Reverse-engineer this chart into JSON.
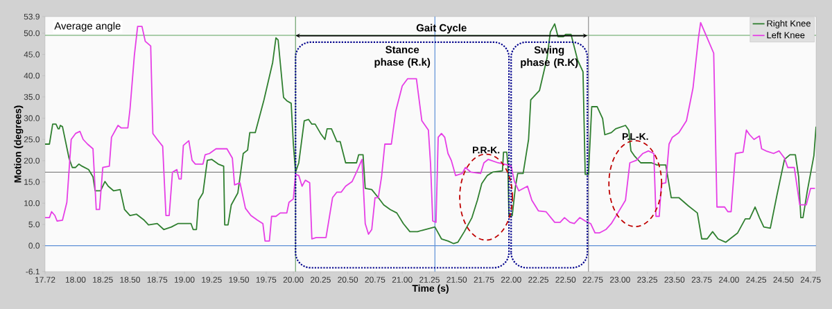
{
  "chart_data": {
    "type": "line",
    "xlabel": "Time (s)",
    "ylabel": "Motion (degrees)",
    "xlim": [
      17.72,
      24.8
    ],
    "ylim": [
      -6.1,
      53.9
    ],
    "xticks": [
      {
        "value": 17.72,
        "label": "17.72"
      },
      {
        "value": 18,
        "label": "18.00"
      },
      {
        "value": 18.25,
        "label": "18.25"
      },
      {
        "value": 18.5,
        "label": "18.50"
      },
      {
        "value": 18.75,
        "label": "18.75"
      },
      {
        "value": 19,
        "label": "19.00"
      },
      {
        "value": 19.25,
        "label": "19.25"
      },
      {
        "value": 19.5,
        "label": "19.50"
      },
      {
        "value": 19.75,
        "label": "19.75"
      },
      {
        "value": 20,
        "label": "20.00"
      },
      {
        "value": 20.25,
        "label": "20.25"
      },
      {
        "value": 20.5,
        "label": "20.50"
      },
      {
        "value": 20.75,
        "label": "20.75"
      },
      {
        "value": 21,
        "label": "21.00"
      },
      {
        "value": 21.25,
        "label": "21.25"
      },
      {
        "value": 21.5,
        "label": "21.50"
      },
      {
        "value": 21.75,
        "label": "21.75"
      },
      {
        "value": 22,
        "label": "22.00"
      },
      {
        "value": 22.25,
        "label": "22.25"
      },
      {
        "value": 22.5,
        "label": "22.50"
      },
      {
        "value": 22.75,
        "label": "22.75"
      },
      {
        "value": 23,
        "label": "23.00"
      },
      {
        "value": 23.25,
        "label": "23.25"
      },
      {
        "value": 23.5,
        "label": "23.50"
      },
      {
        "value": 23.75,
        "label": "23.75"
      },
      {
        "value": 24,
        "label": "24.00"
      },
      {
        "value": 24.25,
        "label": "24.25"
      },
      {
        "value": 24.5,
        "label": "24.50"
      },
      {
        "value": 24.75,
        "label": "24.75"
      }
    ],
    "yticks": [
      -6.1,
      {
        "value": 0,
        "label": "0.0"
      },
      {
        "value": 5,
        "label": "5.0"
      },
      {
        "value": 10,
        "label": "10.0"
      },
      {
        "value": 15,
        "label": "15.0"
      },
      {
        "value": 20,
        "label": "20.0"
      },
      {
        "value": 25,
        "label": "25.0"
      },
      {
        "value": 30,
        "label": "30.0"
      },
      {
        "value": 35,
        "label": "35.0"
      },
      {
        "value": 40,
        "label": "40.0"
      },
      {
        "value": 45,
        "label": "45.0"
      },
      {
        "value": 50,
        "label": "50.0"
      },
      53.9
    ],
    "legend": "top right",
    "marker": "none",
    "line_style": "solid",
    "grid": false,
    "series": [
      {
        "name": "Right Knee",
        "color": "#2f7f2f",
        "x": [
          17.72,
          17.76,
          17.79,
          17.82,
          17.84,
          17.85,
          17.86,
          17.88,
          17.94,
          17.97,
          18.0,
          18.03,
          18.06,
          18.12,
          18.16,
          18.18,
          18.23,
          18.27,
          18.3,
          18.35,
          18.41,
          18.45,
          18.5,
          18.56,
          18.63,
          18.67,
          18.75,
          18.81,
          18.88,
          18.94,
          19.0,
          19.06,
          19.08,
          19.11,
          19.13,
          19.17,
          19.21,
          19.25,
          19.31,
          19.36,
          19.37,
          19.4,
          19.43,
          19.49,
          19.54,
          19.58,
          19.6,
          19.65,
          19.73,
          19.81,
          19.84,
          19.86,
          19.91,
          19.94,
          19.98,
          20.0,
          20.02,
          20.05,
          20.1,
          20.14,
          20.17,
          20.2,
          20.25,
          20.29,
          20.31,
          20.35,
          20.4,
          20.43,
          20.48,
          20.58,
          20.6,
          20.64,
          20.66,
          20.72,
          20.78,
          20.83,
          20.89,
          20.95,
          21.01,
          21.07,
          21.14,
          21.18,
          21.3,
          21.36,
          21.42,
          21.47,
          21.51,
          21.57,
          21.64,
          21.69,
          21.73,
          21.78,
          21.83,
          21.92,
          21.93,
          21.96,
          21.97,
          21.98,
          22.01,
          22.04,
          22.06,
          22.11,
          22.16,
          22.18,
          22.26,
          22.33,
          22.36,
          22.4,
          22.43,
          22.48,
          22.5,
          22.55,
          22.61,
          22.66,
          22.68,
          22.71,
          22.74,
          22.79,
          22.84,
          22.86,
          22.92,
          22.96,
          23.05,
          23.08,
          23.1,
          23.13,
          23.19,
          23.29,
          23.34,
          23.42,
          23.47,
          23.54,
          23.63,
          23.71,
          23.75,
          23.8,
          23.85,
          23.9,
          23.97,
          24.01,
          24.08,
          24.15,
          24.19,
          24.24,
          24.28,
          24.32,
          24.38,
          24.44,
          24.51,
          24.56,
          24.61,
          24.64,
          24.66,
          24.68,
          24.72,
          24.78,
          24.8
        ],
        "values": [
          23.9,
          23.9,
          28.6,
          28.6,
          27.5,
          27.5,
          28.3,
          28.0,
          20.6,
          18.4,
          18.4,
          19.2,
          18.7,
          17.9,
          16.2,
          12.9,
          12.9,
          15.1,
          14.0,
          12.9,
          13.2,
          8.5,
          7.1,
          7.4,
          6.0,
          4.9,
          5.2,
          3.8,
          4.4,
          5.2,
          5.2,
          5.2,
          3.8,
          3.8,
          10.7,
          12.4,
          20.1,
          20.3,
          19.2,
          18.7,
          4.9,
          4.9,
          9.6,
          12.4,
          21.7,
          22.5,
          26.6,
          26.6,
          34.3,
          43.1,
          48.9,
          48.4,
          34.9,
          34.1,
          33.5,
          23.9,
          17.3,
          19.5,
          29.4,
          29.7,
          28.6,
          28.6,
          26.4,
          25.0,
          27.5,
          27.5,
          24.5,
          24.5,
          19.5,
          19.5,
          21.4,
          21.4,
          13.5,
          13.2,
          11.3,
          9.6,
          8.5,
          7.7,
          5.2,
          3.3,
          3.3,
          3.6,
          4.4,
          1.6,
          1.1,
          0.5,
          0.8,
          3.3,
          6.6,
          10.7,
          14.6,
          16.5,
          17.3,
          17.6,
          22.0,
          22.0,
          19.0,
          6.9,
          7.1,
          14.0,
          17.0,
          17.0,
          25.0,
          34.3,
          36.5,
          44.2,
          50.3,
          52.2,
          49.2,
          49.2,
          49.7,
          49.7,
          43.7,
          40.9,
          16.8,
          16.8,
          32.7,
          32.7,
          29.9,
          26.1,
          26.6,
          27.5,
          28.3,
          27.2,
          22.3,
          21.2,
          19.5,
          19.5,
          19.0,
          19.0,
          11.3,
          11.3,
          9.3,
          7.7,
          1.6,
          1.6,
          3.3,
          1.6,
          0.8,
          1.6,
          3.0,
          6.3,
          6.3,
          9.1,
          6.6,
          4.4,
          4.1,
          11.8,
          20.3,
          21.4,
          21.4,
          16.2,
          6.6,
          6.6,
          12.9,
          21.2,
          28.0
        ]
      },
      {
        "name": "Left Knee",
        "color": "#e63ee6",
        "x": [
          17.72,
          17.76,
          17.78,
          17.81,
          17.83,
          17.88,
          17.92,
          17.96,
          18.0,
          18.04,
          18.07,
          18.11,
          18.16,
          18.19,
          18.22,
          18.25,
          18.31,
          18.33,
          18.39,
          18.42,
          18.48,
          18.5,
          18.54,
          18.57,
          18.61,
          18.64,
          18.69,
          18.71,
          18.75,
          18.8,
          18.83,
          18.86,
          18.89,
          18.93,
          18.95,
          18.97,
          18.99,
          19.04,
          19.07,
          19.1,
          19.17,
          19.19,
          19.23,
          19.29,
          19.39,
          19.44,
          19.46,
          19.51,
          19.56,
          19.61,
          19.67,
          19.72,
          19.74,
          19.78,
          19.8,
          19.84,
          19.88,
          19.94,
          19.96,
          20.0,
          20.02,
          20.05,
          20.08,
          20.11,
          20.15,
          20.17,
          20.21,
          20.3,
          20.36,
          20.4,
          20.44,
          20.48,
          20.54,
          20.59,
          20.63,
          20.66,
          20.69,
          20.72,
          20.75,
          20.78,
          20.81,
          20.84,
          20.9,
          20.94,
          21.0,
          21.05,
          21.13,
          21.18,
          21.24,
          21.26,
          21.28,
          21.31,
          21.33,
          21.36,
          21.39,
          21.42,
          21.45,
          21.49,
          21.55,
          21.58,
          21.63,
          21.72,
          21.75,
          21.79,
          21.88,
          21.97,
          22.0,
          22.03,
          22.07,
          22.15,
          22.19,
          22.25,
          22.32,
          22.4,
          22.45,
          22.49,
          22.54,
          22.58,
          22.63,
          22.68,
          22.73,
          22.77,
          22.81,
          22.87,
          22.92,
          22.98,
          23.05,
          23.09,
          23.15,
          23.21,
          23.26,
          23.31,
          23.33,
          23.36,
          23.38,
          23.42,
          23.45,
          23.48,
          23.54,
          23.61,
          23.67,
          23.72,
          23.74,
          23.86,
          23.89,
          23.96,
          23.99,
          24.02,
          24.06,
          24.13,
          24.16,
          24.19,
          24.23,
          24.28,
          24.3,
          24.34,
          24.41,
          24.46,
          24.51,
          24.54,
          24.6,
          24.65,
          24.71,
          24.75,
          24.79
        ],
        "values": [
          6.6,
          6.6,
          8.0,
          7.1,
          5.8,
          6.0,
          10.2,
          25.0,
          26.4,
          26.9,
          25.0,
          23.9,
          22.8,
          8.5,
          8.5,
          18.4,
          18.7,
          25.5,
          28.3,
          27.7,
          27.7,
          32.1,
          44.8,
          51.6,
          51.6,
          48.1,
          47.0,
          26.4,
          25.0,
          23.4,
          7.1,
          7.1,
          17.3,
          17.9,
          15.7,
          15.7,
          23.6,
          24.7,
          20.1,
          19.2,
          19.2,
          21.4,
          21.7,
          22.8,
          22.8,
          20.6,
          14.3,
          14.8,
          8.8,
          7.1,
          6.0,
          5.2,
          1.1,
          1.1,
          6.9,
          6.9,
          7.7,
          7.7,
          10.2,
          11.0,
          16.8,
          16.5,
          14.0,
          15.4,
          14.8,
          1.6,
          1.9,
          1.9,
          11.3,
          12.6,
          12.6,
          14.0,
          15.1,
          17.9,
          20.3,
          5.2,
          2.7,
          3.8,
          11.3,
          11.3,
          16.2,
          23.9,
          23.9,
          31.6,
          37.6,
          39.3,
          39.3,
          29.4,
          27.2,
          19.2,
          5.8,
          5.5,
          25.5,
          26.4,
          25.5,
          21.7,
          20.1,
          16.5,
          17.0,
          18.4,
          17.3,
          17.0,
          19.5,
          20.3,
          19.5,
          19.0,
          18.7,
          15.1,
          12.9,
          14.0,
          10.7,
          8.2,
          8.0,
          5.5,
          5.5,
          6.6,
          5.5,
          5.2,
          6.6,
          5.8,
          5.2,
          3.0,
          3.0,
          3.8,
          5.2,
          7.7,
          10.7,
          19.5,
          20.1,
          21.7,
          22.3,
          21.7,
          6.9,
          6.9,
          14.6,
          14.8,
          23.9,
          25.5,
          26.6,
          29.4,
          37.1,
          48.9,
          52.5,
          45.3,
          9.1,
          9.1,
          8.0,
          8.0,
          21.7,
          22.0,
          27.2,
          26.1,
          25.0,
          25.8,
          22.8,
          22.3,
          21.7,
          22.3,
          20.6,
          18.4,
          18.4,
          9.6,
          9.6,
          13.5,
          13.5
        ]
      }
    ],
    "ref_lines": [
      {
        "axis": "y",
        "value": 49.5,
        "color": "#5aa05a"
      },
      {
        "axis": "y",
        "value": 17.3,
        "color": "#6e6e6e"
      },
      {
        "axis": "y",
        "value": 0,
        "color": "#5b8fd6"
      },
      {
        "axis": "x",
        "value": 20.02,
        "color": "#6a9f6a"
      },
      {
        "axis": "x",
        "value": 21.3,
        "color": "#5b8fd6"
      },
      {
        "axis": "x",
        "value": 22.71,
        "color": "#909090"
      }
    ],
    "annotations": [
      "Average angle",
      "Gait Cycle",
      "Stance phase (R.k)",
      "Swing phase (R.K)",
      "P.R-K.",
      "P.L-K."
    ]
  }
}
